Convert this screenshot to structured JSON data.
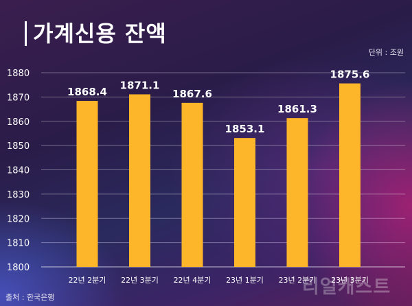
{
  "title": "가계신용 잔액",
  "unit_label": "단위 : 조원",
  "source": "출처 : 한국은행",
  "watermark": "리얼캐스트",
  "colors": {
    "bar": "#FDB62A",
    "grid": "#ffffff"
  },
  "chart_data": {
    "type": "bar",
    "title": "가계신용 잔액",
    "categories": [
      "22년 2분기",
      "22년 3분기",
      "22년 4분기",
      "23년 1분기",
      "23년 2분기",
      "23년 3분기"
    ],
    "values": [
      1868.4,
      1871.1,
      1867.6,
      1853.1,
      1861.3,
      1875.6
    ],
    "value_labels": [
      "1868.4",
      "1871.1",
      "1867.6",
      "1853.1",
      "1861.3",
      "1875.6"
    ],
    "ylim": [
      1800,
      1880
    ],
    "yticks": [
      1800,
      1810,
      1820,
      1830,
      1840,
      1850,
      1860,
      1870,
      1880
    ],
    "grid": true,
    "xlabel": "",
    "ylabel": ""
  }
}
